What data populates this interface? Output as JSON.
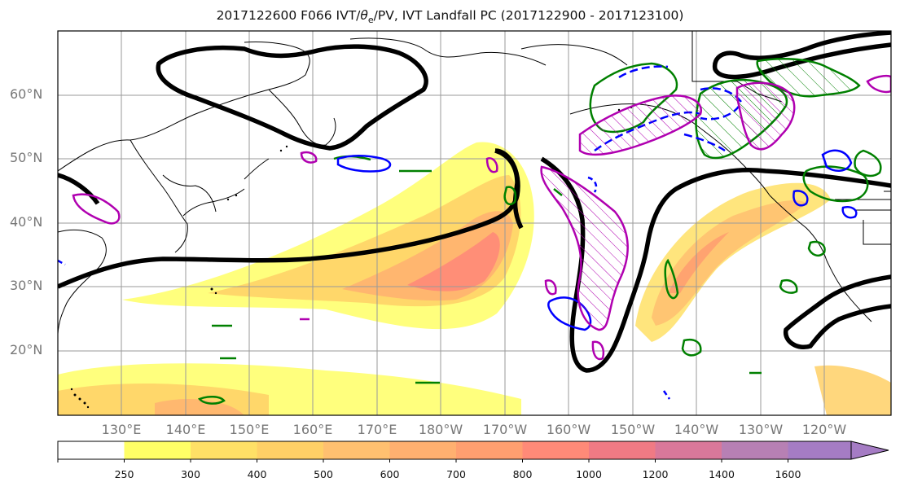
{
  "title": {
    "prefix": "2017122600 F066 IVT/",
    "theta": "θ",
    "theta_sub": "e",
    "suffix": "/PV, IVT Landfall PC (2017122900 - 2017123100)"
  },
  "lat_labels": [
    "60°N",
    "50°N",
    "40°N",
    "30°N",
    "20°N"
  ],
  "lon_labels": [
    "130°E",
    "140°E",
    "150°E",
    "160°E",
    "170°E",
    "180°W",
    "170°W",
    "160°W",
    "150°W",
    "140°W",
    "130°W",
    "120°W"
  ],
  "colorbar": {
    "labels": [
      "250",
      "300",
      "400",
      "500",
      "600",
      "700",
      "800",
      "1000",
      "1200",
      "1400",
      "1600"
    ],
    "colors": [
      "#ffff66",
      "#ffe066",
      "#ffd066",
      "#ffc070",
      "#ffb070",
      "#ff9f70",
      "#ff8a78",
      "#f07a84",
      "#d9789a",
      "#b780b4",
      "#a57cc4"
    ]
  },
  "contour_colors": {
    "ivt_landfall_pc": "#000000",
    "positive_anomaly": "#008000",
    "negative_anomaly": "#0000ff",
    "pv": "#b000b0"
  }
}
